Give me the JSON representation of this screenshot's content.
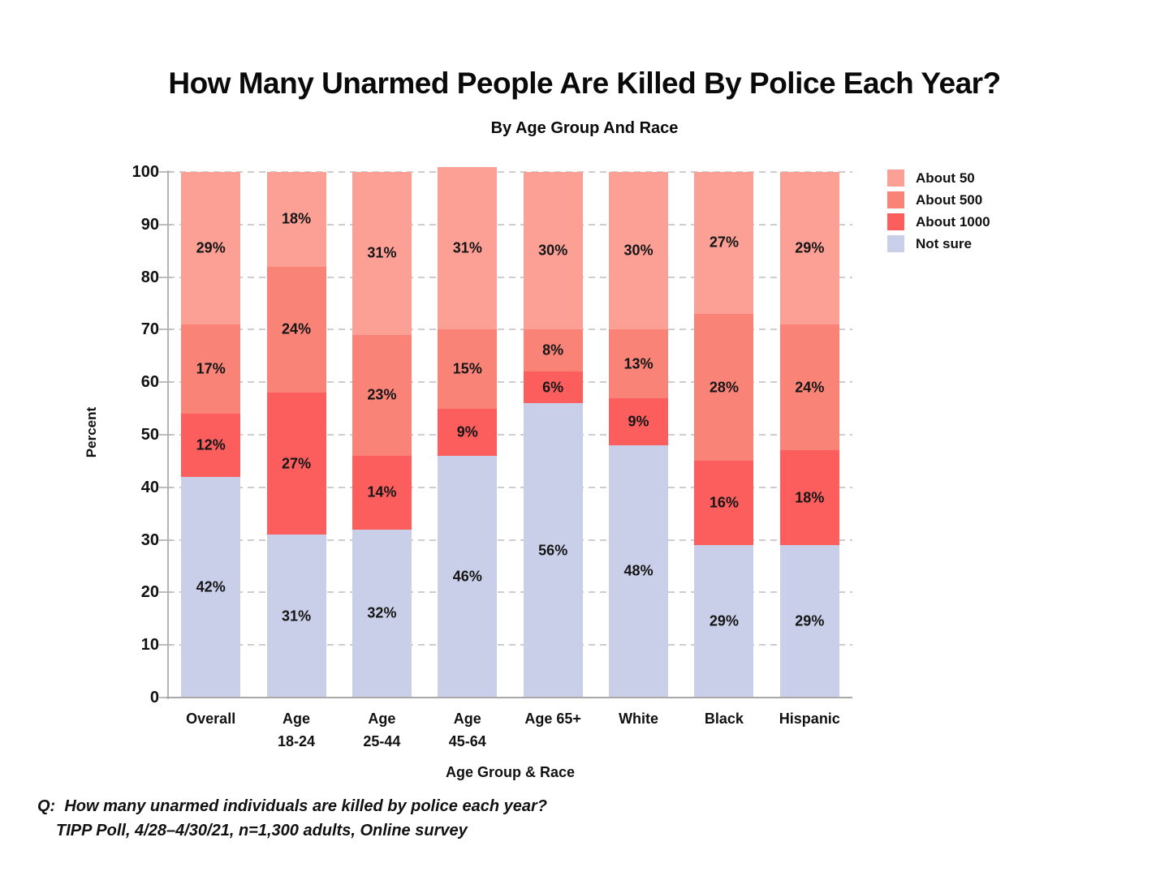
{
  "chart_data": {
    "type": "bar",
    "variant": "stacked-vertical",
    "title": "How Many Unarmed People Are Killed By Police Each Year?",
    "subtitle": "By Age Group And Race",
    "xlabel": "Age Group & Race",
    "ylabel": "Percent",
    "ylim": [
      0,
      100
    ],
    "ytick_interval": 10,
    "yticks": [
      0,
      10,
      20,
      30,
      40,
      50,
      60,
      70,
      80,
      90,
      100
    ],
    "grid": "horizontal-dashed",
    "legend_position": "top-right",
    "label_suffix": "%",
    "categories": [
      "Overall",
      "Age\n18-24",
      "Age\n25-44",
      "Age\n45-64",
      "Age 65+",
      "White",
      "Black",
      "Hispanic"
    ],
    "series": [
      {
        "name": "About 50",
        "color": "#FCA096",
        "values": [
          29,
          18,
          31,
          31,
          30,
          30,
          27,
          29
        ]
      },
      {
        "name": "About 500",
        "color": "#FA8378",
        "values": [
          17,
          24,
          23,
          15,
          8,
          13,
          28,
          24
        ]
      },
      {
        "name": "About 1000",
        "color": "#FC5E5E",
        "values": [
          12,
          27,
          14,
          9,
          6,
          9,
          16,
          18
        ]
      },
      {
        "name": "Not sure",
        "color": "#C9CFE9",
        "values": [
          42,
          31,
          32,
          46,
          56,
          48,
          29,
          29
        ]
      }
    ],
    "stack_bottom_to_top": [
      "Not sure",
      "About 1000",
      "About 500",
      "About 50"
    ]
  },
  "footer": {
    "question": "Q:  How many unarmed individuals are killed by police each year?",
    "source": "TIPP Poll, 4/28–4/30/21, n=1,300 adults, Online survey"
  }
}
